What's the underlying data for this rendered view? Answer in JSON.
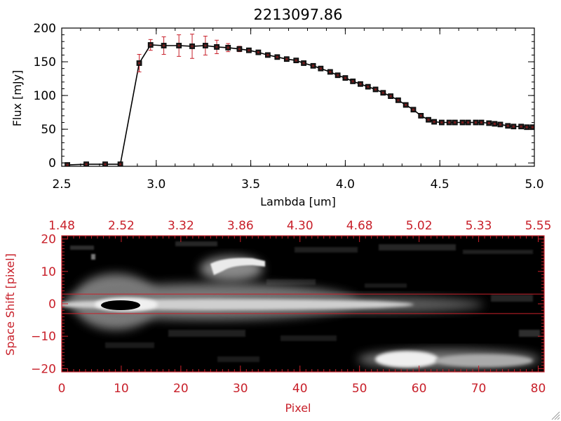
{
  "chart_data": [
    {
      "type": "line",
      "title": "2213097.86",
      "xlabel": "Lambda [um]",
      "ylabel": "Flux [mJy]",
      "xlim": [
        2.5,
        5.0
      ],
      "ylim": [
        -5,
        200
      ],
      "xticks": [
        "2.5",
        "3.0",
        "3.5",
        "4.0",
        "4.5",
        "5.0"
      ],
      "xtick_values": [
        2.5,
        3.0,
        3.5,
        4.0,
        4.5,
        5.0
      ],
      "yticks": [
        "0",
        "50",
        "100",
        "150",
        "200"
      ],
      "ytick_values": [
        0,
        50,
        100,
        150,
        200
      ],
      "grid": false,
      "colors": {
        "line": "#000000",
        "marker": "#1a1a1a",
        "errorbar": "#c8202a"
      },
      "series": [
        {
          "x": [
            2.53,
            2.63,
            2.73,
            2.81,
            2.91,
            2.97,
            3.04,
            3.12,
            3.19,
            3.26,
            3.32,
            3.38,
            3.44,
            3.49,
            3.54,
            3.59,
            3.64,
            3.69,
            3.74,
            3.78,
            3.83,
            3.87,
            3.92,
            3.96,
            4.0,
            4.04,
            4.08,
            4.12,
            4.16,
            4.2,
            4.24,
            4.28,
            4.32,
            4.36,
            4.4,
            4.44,
            4.47,
            4.51,
            4.55,
            4.58,
            4.62,
            4.65,
            4.69,
            4.72,
            4.76,
            4.79,
            4.82,
            4.86,
            4.89,
            4.93,
            4.96,
            4.99
          ],
          "y": [
            -3,
            -2,
            -2,
            -2,
            148,
            175,
            174,
            174,
            173,
            174,
            172,
            171,
            169,
            167,
            164,
            160,
            157,
            154,
            152,
            148,
            144,
            140,
            135,
            130,
            126,
            121,
            117,
            113,
            109,
            104,
            99,
            93,
            86,
            79,
            70,
            64,
            61,
            60,
            60,
            60,
            60,
            60,
            60,
            60,
            59,
            58,
            57,
            55,
            54,
            54,
            53,
            53
          ],
          "yerr": [
            0,
            0,
            0,
            0,
            13,
            8,
            13,
            16,
            18,
            14,
            10,
            6,
            4,
            3,
            3,
            2,
            2,
            2,
            2,
            2,
            2,
            2,
            2,
            2,
            2,
            2,
            2,
            2,
            2,
            2,
            2,
            2,
            2,
            2,
            2,
            2,
            2,
            2,
            2,
            2,
            2,
            2,
            2,
            2,
            2,
            2,
            2,
            2,
            2,
            2,
            2,
            3
          ]
        }
      ]
    },
    {
      "type": "heatmap",
      "xlabel": "Pixel",
      "ylabel": "Space Shift [pixel]",
      "xlim": [
        0,
        81
      ],
      "ylim": [
        -21,
        21
      ],
      "xticks": [
        "0",
        "10",
        "20",
        "30",
        "40",
        "50",
        "60",
        "70",
        "80"
      ],
      "xtick_values": [
        0,
        10,
        20,
        30,
        40,
        50,
        60,
        70,
        80
      ],
      "yticks": [
        "−20",
        "−10",
        "0",
        "10",
        "20"
      ],
      "ytick_values": [
        -20,
        -10,
        0,
        10,
        20
      ],
      "top_axis_ticks": [
        "1.48",
        "2.52",
        "3.32",
        "3.86",
        "4.30",
        "4.68",
        "5.02",
        "5.33",
        "5.55"
      ],
      "top_axis_positions": [
        0,
        10,
        20,
        30,
        40,
        50,
        60,
        70,
        80
      ],
      "extraction_window": [
        -3,
        3
      ],
      "colormap": "grayscale",
      "colors": {
        "axes": "#c8202a",
        "window_lines": "#c8202a",
        "background": "#000000"
      }
    }
  ]
}
